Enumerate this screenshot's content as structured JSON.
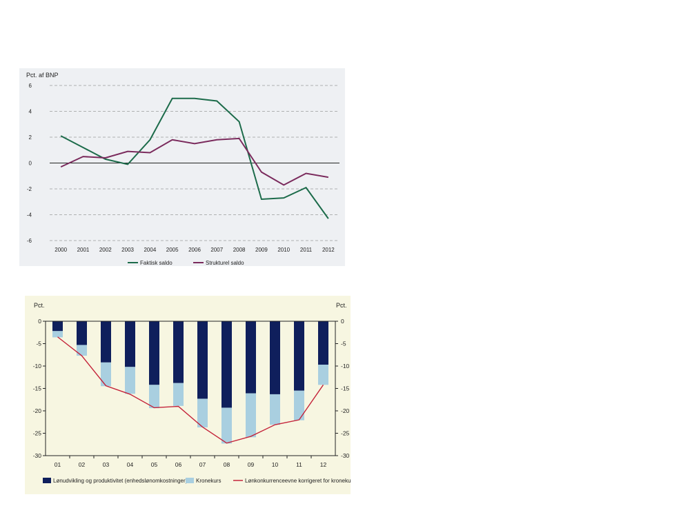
{
  "charts_meta": {
    "accent_green": "#1c6b4a",
    "accent_purple": "#7a2a5c",
    "navy": "#0f1f5c",
    "lightblue": "#a9cfe0",
    "red_line": "#c4233a"
  },
  "chart_data": [
    {
      "type": "line",
      "ylabel": "Pct. af BNP",
      "x": [
        "2000",
        "2001",
        "2002",
        "2003",
        "2004",
        "2005",
        "2006",
        "2007",
        "2008",
        "2009",
        "2010",
        "2011",
        "2012"
      ],
      "series": [
        {
          "name": "Faktisk saldo",
          "color": "#1c6b4a",
          "values": [
            2.1,
            1.2,
            0.3,
            -0.1,
            1.8,
            5.0,
            5.0,
            4.8,
            3.2,
            -2.8,
            -2.7,
            -1.9,
            -4.3
          ]
        },
        {
          "name": "Strukturel saldo",
          "color": "#7a2a5c",
          "values": [
            -0.3,
            0.5,
            0.4,
            0.9,
            0.8,
            1.8,
            1.5,
            1.8,
            1.9,
            -0.7,
            -1.7,
            -0.8,
            -1.1
          ]
        }
      ],
      "ylim": [
        -6,
        6
      ],
      "yticks": [
        "6",
        "4",
        "2",
        "0",
        "-2",
        "-4",
        "-6"
      ],
      "ytick_values": [
        6,
        4,
        2,
        0,
        -2,
        -4,
        -6
      ],
      "grid": true,
      "legend_position": "bottom"
    },
    {
      "type": "bar",
      "ylabel_left": "Pct.",
      "ylabel_right": "Pct.",
      "categories": [
        "01",
        "02",
        "03",
        "04",
        "05",
        "06",
        "07",
        "08",
        "09",
        "10",
        "11",
        "12"
      ],
      "series": [
        {
          "name": "Lønudvikling og produktivitet (enhedslønomkostninger)",
          "color": "#0f1f5c",
          "values": [
            -2.2,
            -5.3,
            -9.2,
            -10.2,
            -14.2,
            -13.8,
            -17.3,
            -19.3,
            -16.1,
            -16.3,
            -15.5,
            -9.7
          ]
        },
        {
          "name": "Kronekurs",
          "color": "#a9cfe0",
          "values": [
            -1.4,
            -2.4,
            -5.3,
            -6.0,
            -5.2,
            -5.1,
            -6.4,
            -8.0,
            -9.8,
            -6.8,
            -6.6,
            -4.5
          ]
        },
        {
          "name": "Lønkonkurrenceevne korrigeret for kronekurs",
          "color": "#c4233a",
          "kind": "line",
          "values": [
            -3.5,
            -7.7,
            -14.4,
            -16.3,
            -19.3,
            -19.0,
            -23.6,
            -27.2,
            -25.7,
            -23.1,
            -22.0,
            -14.2
          ]
        }
      ],
      "stacked": true,
      "ylim": [
        -30,
        0
      ],
      "yticks": [
        "0",
        "-5",
        "-10",
        "-15",
        "-20",
        "-25",
        "-30"
      ],
      "ytick_values": [
        0,
        -5,
        -10,
        -15,
        -20,
        -25,
        -30
      ],
      "grid": false,
      "legend_position": "bottom"
    }
  ]
}
